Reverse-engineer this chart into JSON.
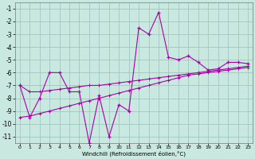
{
  "bg_color": "#c8e8e0",
  "grid_color": "#a0c8c0",
  "line_color": "#aa00aa",
  "x": [
    0,
    1,
    2,
    3,
    4,
    5,
    6,
    7,
    8,
    9,
    10,
    11,
    12,
    13,
    14,
    15,
    16,
    17,
    18,
    19,
    20,
    21,
    22,
    23
  ],
  "y_main": [
    -7.0,
    -9.5,
    -8.0,
    -6.0,
    -6.0,
    -7.5,
    -7.5,
    -11.5,
    -7.8,
    -11.0,
    -8.5,
    -9.0,
    -2.5,
    -3.0,
    -1.3,
    -4.8,
    -5.0,
    -4.7,
    -5.2,
    -5.8,
    -5.7,
    -5.2,
    -5.2,
    -5.3
  ],
  "y_trend1": [
    -7.0,
    -7.5,
    -7.5,
    -7.4,
    -7.3,
    -7.2,
    -7.1,
    -7.0,
    -7.0,
    -6.9,
    -6.8,
    -6.7,
    -6.6,
    -6.5,
    -6.4,
    -6.3,
    -6.2,
    -6.1,
    -6.0,
    -5.9,
    -5.8,
    -5.7,
    -5.6,
    -5.5
  ],
  "y_trend2": [
    -9.5,
    -9.4,
    -9.2,
    -9.0,
    -8.8,
    -8.6,
    -8.4,
    -8.2,
    -8.0,
    -7.8,
    -7.6,
    -7.4,
    -7.2,
    -7.0,
    -6.8,
    -6.6,
    -6.4,
    -6.2,
    -6.1,
    -6.0,
    -5.9,
    -5.8,
    -5.7,
    -5.6
  ],
  "ylim": [
    -11.5,
    -0.5
  ],
  "xlim": [
    -0.5,
    23.5
  ],
  "yticks": [
    -11,
    -10,
    -9,
    -8,
    -7,
    -6,
    -5,
    -4,
    -3,
    -2,
    -1
  ],
  "xticks": [
    0,
    1,
    2,
    3,
    4,
    5,
    6,
    7,
    8,
    9,
    10,
    11,
    12,
    13,
    14,
    15,
    16,
    17,
    18,
    19,
    20,
    21,
    22,
    23
  ],
  "xlabel": "Windchill (Refroidissement éolien,°C)"
}
